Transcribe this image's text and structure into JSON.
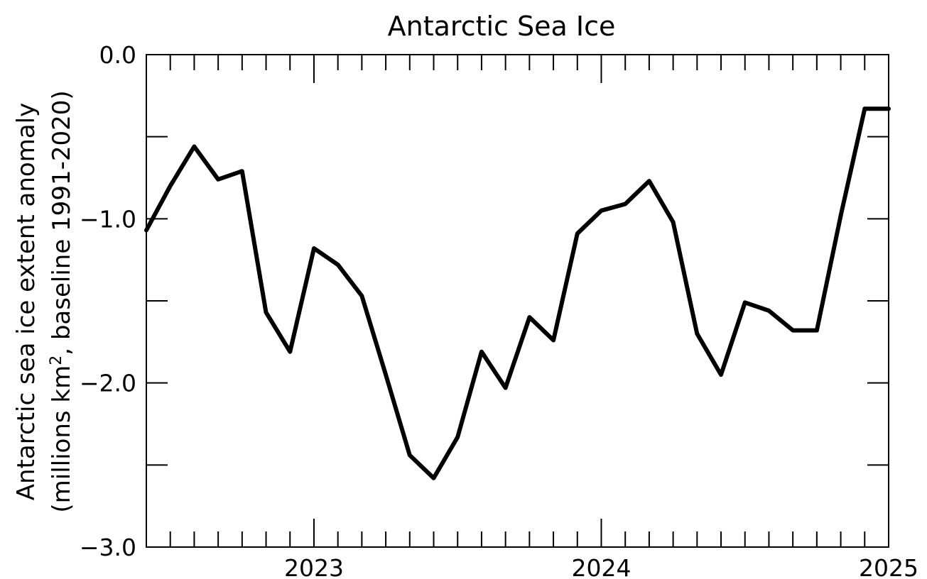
{
  "chart_data": {
    "type": "line",
    "title": "Antarctic Sea Ice",
    "ylabel_line1": "Antarctic sea ice extent anomaly",
    "ylabel_line2_prefix": "(millions km",
    "ylabel_line2_sup": "2",
    "ylabel_line2_suffix": ", baseline 1991-2020)",
    "xlim": [
      "2022-06",
      "2025-01"
    ],
    "ylim": [
      -3.0,
      0.0
    ],
    "x_tick_labels": [
      "2023",
      "2024",
      "2025"
    ],
    "y_tick_labels": [
      "0.0",
      "−1.0",
      "−2.0",
      "−3.0"
    ],
    "y_major_ticks": [
      0.0,
      -1.0,
      -2.0,
      -3.0
    ],
    "y_minor_ticks": [
      -0.5,
      -1.5,
      -2.5
    ],
    "grid": false,
    "series": [
      {
        "color": "#000000",
        "x": [
          "2022-06",
          "2022-07",
          "2022-08",
          "2022-09",
          "2022-10",
          "2022-11",
          "2022-12",
          "2023-01",
          "2023-02",
          "2023-03",
          "2023-04",
          "2023-05",
          "2023-06",
          "2023-07",
          "2023-08",
          "2023-09",
          "2023-10",
          "2023-11",
          "2023-12",
          "2024-01",
          "2024-02",
          "2024-03",
          "2024-04",
          "2024-05",
          "2024-06",
          "2024-07",
          "2024-08",
          "2024-09",
          "2024-10",
          "2024-11",
          "2024-12",
          "2025-01"
        ],
        "values": [
          -1.07,
          -0.8,
          -0.56,
          -0.76,
          -0.71,
          -1.57,
          -1.81,
          -1.18,
          -1.28,
          -1.47,
          -1.95,
          -2.44,
          -2.58,
          -2.33,
          -1.81,
          -2.03,
          -1.6,
          -1.74,
          -1.09,
          -0.95,
          -0.91,
          -0.77,
          -1.02,
          -1.7,
          -1.95,
          -1.51,
          -1.56,
          -1.68,
          -1.68,
          -0.98,
          -0.33,
          -0.33
        ]
      }
    ]
  }
}
